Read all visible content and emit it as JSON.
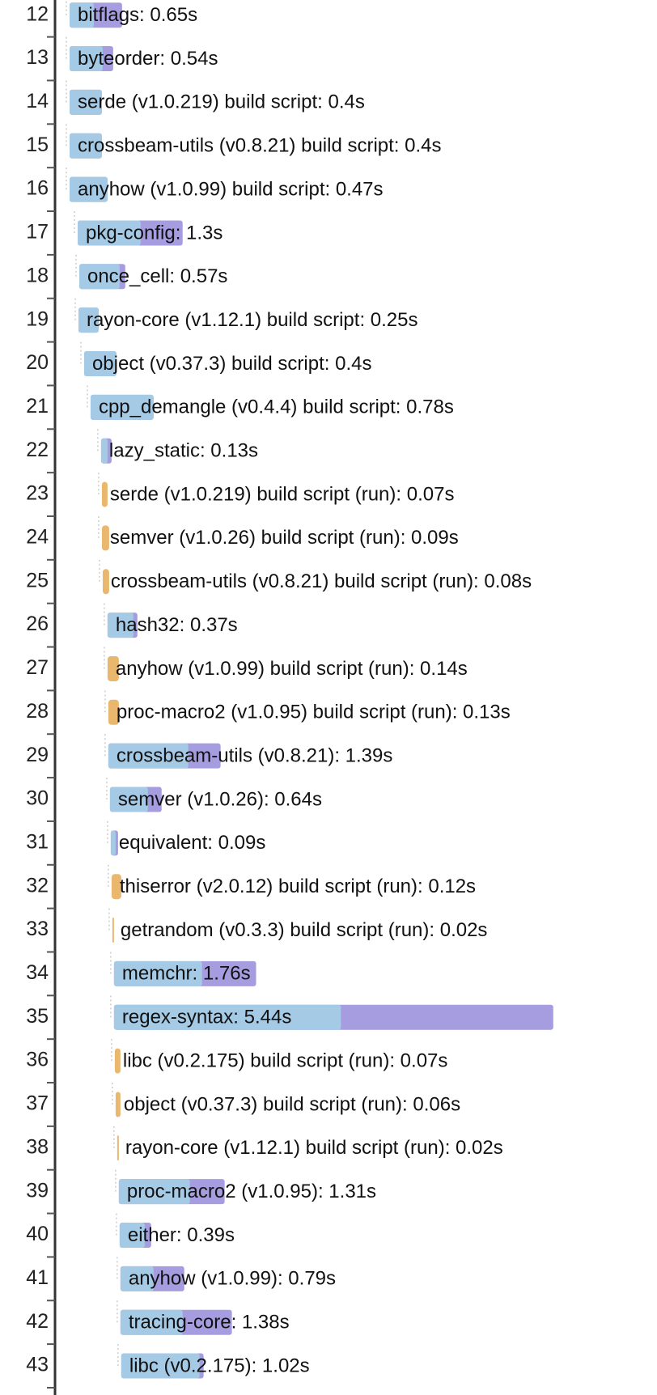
{
  "chart_data": {
    "type": "gantt",
    "colors": {
      "frontend": "#a5cae6",
      "codegen": "#a69de0",
      "run": "#e9b76e"
    },
    "rows": [
      {
        "id": 12,
        "label": "bitflags: 0.65s",
        "start": 0.0,
        "duration": 0.65,
        "frontend": 0.3,
        "kind": "unit"
      },
      {
        "id": 13,
        "label": "byteorder: 0.54s",
        "start": 0.0,
        "duration": 0.54,
        "frontend": 0.41,
        "kind": "unit"
      },
      {
        "id": 14,
        "label": "serde (v1.0.219) build script: 0.4s",
        "start": 0.0,
        "duration": 0.4,
        "frontend": 0.4,
        "kind": "unit"
      },
      {
        "id": 15,
        "label": "crossbeam-utils (v0.8.21) build script: 0.4s",
        "start": 0.0,
        "duration": 0.4,
        "frontend": 0.4,
        "kind": "unit"
      },
      {
        "id": 16,
        "label": "anyhow (v1.0.99) build script: 0.47s",
        "start": 0.0,
        "duration": 0.47,
        "frontend": 0.47,
        "kind": "unit"
      },
      {
        "id": 17,
        "label": "pkg-config: 1.3s",
        "start": 0.1,
        "duration": 1.3,
        "frontend": 0.78,
        "kind": "unit"
      },
      {
        "id": 18,
        "label": "once_cell: 0.57s",
        "start": 0.12,
        "duration": 0.57,
        "frontend": 0.5,
        "kind": "unit"
      },
      {
        "id": 19,
        "label": "rayon-core (v1.12.1) build script: 0.25s",
        "start": 0.11,
        "duration": 0.25,
        "frontend": 0.25,
        "kind": "unit"
      },
      {
        "id": 20,
        "label": "object (v0.37.3) build script: 0.4s",
        "start": 0.18,
        "duration": 0.4,
        "frontend": 0.4,
        "kind": "unit"
      },
      {
        "id": 21,
        "label": "cpp_demangle (v0.4.4) build script: 0.78s",
        "start": 0.26,
        "duration": 0.78,
        "frontend": 0.78,
        "kind": "unit"
      },
      {
        "id": 22,
        "label": "lazy_static: 0.13s",
        "start": 0.39,
        "duration": 0.13,
        "frontend": 0.08,
        "kind": "unit"
      },
      {
        "id": 23,
        "label": "serde (v1.0.219) build script (run): 0.07s",
        "start": 0.4,
        "duration": 0.07,
        "kind": "run"
      },
      {
        "id": 24,
        "label": "semver (v1.0.26) build script (run): 0.09s",
        "start": 0.4,
        "duration": 0.09,
        "kind": "run"
      },
      {
        "id": 25,
        "label": "crossbeam-utils (v0.8.21) build script (run): 0.08s",
        "start": 0.41,
        "duration": 0.08,
        "kind": "run"
      },
      {
        "id": 26,
        "label": "hash32: 0.37s",
        "start": 0.47,
        "duration": 0.37,
        "frontend": 0.32,
        "kind": "unit"
      },
      {
        "id": 27,
        "label": "anyhow (v1.0.99) build script (run): 0.14s",
        "start": 0.47,
        "duration": 0.14,
        "kind": "run"
      },
      {
        "id": 28,
        "label": "proc-macro2 (v1.0.95) build script (run): 0.13s",
        "start": 0.48,
        "duration": 0.13,
        "kind": "run"
      },
      {
        "id": 29,
        "label": "crossbeam-utils (v0.8.21): 1.39s",
        "start": 0.48,
        "duration": 1.39,
        "frontend": 0.99,
        "kind": "unit"
      },
      {
        "id": 30,
        "label": "semver (v1.0.26): 0.64s",
        "start": 0.5,
        "duration": 0.64,
        "frontend": 0.47,
        "kind": "unit"
      },
      {
        "id": 31,
        "label": "equivalent: 0.09s",
        "start": 0.51,
        "duration": 0.09,
        "frontend": 0.06,
        "kind": "unit"
      },
      {
        "id": 32,
        "label": "thiserror (v2.0.12) build script (run): 0.12s",
        "start": 0.52,
        "duration": 0.12,
        "kind": "run"
      },
      {
        "id": 33,
        "label": "getrandom (v0.3.3) build script (run): 0.02s",
        "start": 0.53,
        "duration": 0.02,
        "kind": "run"
      },
      {
        "id": 34,
        "label": "memchr: 1.76s",
        "start": 0.55,
        "duration": 1.76,
        "frontend": 1.09,
        "kind": "unit"
      },
      {
        "id": 35,
        "label": "regex-syntax: 5.44s",
        "start": 0.55,
        "duration": 5.44,
        "frontend": 2.81,
        "kind": "unit"
      },
      {
        "id": 36,
        "label": "libc (v0.2.175) build script (run): 0.07s",
        "start": 0.56,
        "duration": 0.07,
        "kind": "run"
      },
      {
        "id": 37,
        "label": "object (v0.37.3) build script (run): 0.06s",
        "start": 0.57,
        "duration": 0.06,
        "kind": "run"
      },
      {
        "id": 38,
        "label": "rayon-core (v1.12.1) build script (run): 0.02s",
        "start": 0.59,
        "duration": 0.02,
        "kind": "run"
      },
      {
        "id": 39,
        "label": "proc-macro2 (v1.0.95): 1.31s",
        "start": 0.61,
        "duration": 1.31,
        "frontend": 0.88,
        "kind": "unit"
      },
      {
        "id": 40,
        "label": "either: 0.39s",
        "start": 0.62,
        "duration": 0.39,
        "frontend": 0.31,
        "kind": "unit"
      },
      {
        "id": 41,
        "label": "anyhow (v1.0.99): 0.79s",
        "start": 0.63,
        "duration": 0.79,
        "frontend": 0.41,
        "kind": "unit"
      },
      {
        "id": 42,
        "label": "tracing-core: 1.38s",
        "start": 0.63,
        "duration": 1.38,
        "frontend": 0.77,
        "kind": "unit"
      },
      {
        "id": 43,
        "label": "libc (v0.2.175): 1.02s",
        "start": 0.64,
        "duration": 1.02,
        "frontend": 0.97,
        "kind": "unit"
      }
    ]
  }
}
